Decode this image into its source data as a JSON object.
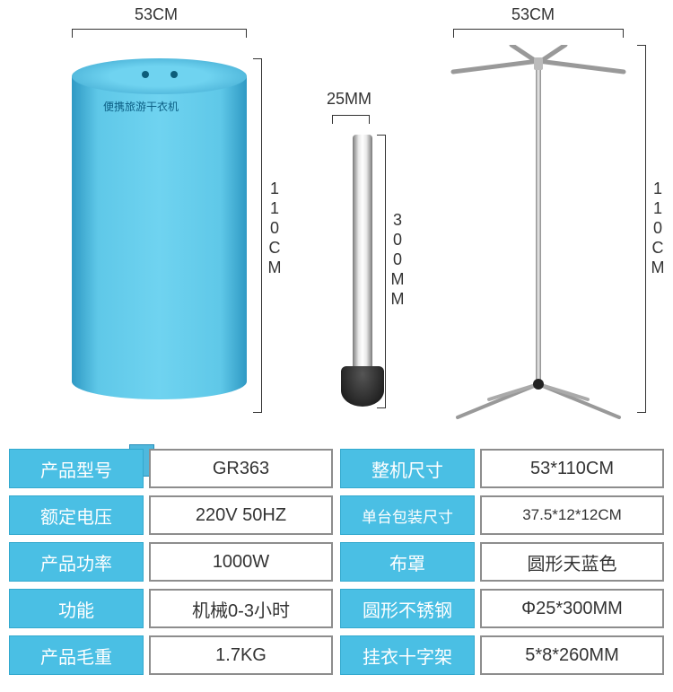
{
  "dimensions": {
    "cylinder_width": "53CM",
    "cylinder_height": "110CM",
    "tube_width": "25MM",
    "tube_height": "300MM",
    "stand_width": "53CM",
    "stand_height": "110CM"
  },
  "cylinder": {
    "body_color": "#5fc8e8",
    "label_text": "便携旅游干衣机"
  },
  "specs_left": [
    {
      "label": "产品型号",
      "value": "GR363"
    },
    {
      "label": "额定电压",
      "value": "220V 50HZ"
    },
    {
      "label": "产品功率",
      "value": "1000W"
    },
    {
      "label": "功能",
      "value": "机械0-3小时"
    },
    {
      "label": "产品毛重",
      "value": "1.7KG"
    }
  ],
  "specs_right": [
    {
      "label": "整机尺寸",
      "value": "53*110CM"
    },
    {
      "label": "单台包装尺寸",
      "value": "37.5*12*12CM",
      "wide": true,
      "sm": true
    },
    {
      "label": "布罩",
      "value": "圆形天蓝色"
    },
    {
      "label": "圆形不锈钢",
      "value": "Φ25*300MM"
    },
    {
      "label": "挂衣十字架",
      "value": "5*8*260MM"
    }
  ],
  "colors": {
    "accent": "#4abfe4",
    "border": "#8d8d8d",
    "text": "#333333"
  }
}
